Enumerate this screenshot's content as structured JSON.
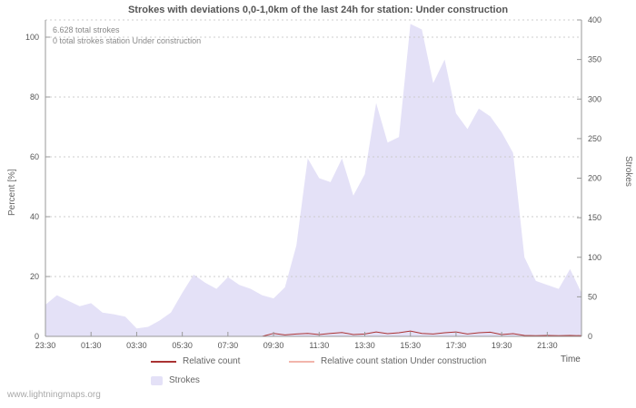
{
  "watermark": "www.lightningmaps.org",
  "chart_data": {
    "type": "area",
    "title": "Strokes with deviations 0,0-1,0km of the last 24h for station: Under construction",
    "annotations": {
      "total_strokes": "6.628 total strokes",
      "station_strokes": "0 total strokes station Under construction"
    },
    "x_axis_label": "Time",
    "x_tick_labels": [
      "23:30",
      "01:30",
      "03:30",
      "05:30",
      "07:30",
      "09:30",
      "11:30",
      "13:30",
      "15:30",
      "17:30",
      "19:30",
      "21:30"
    ],
    "left_axis": {
      "label": "Percent  [%]",
      "min": 0,
      "max": 100,
      "ticks": [
        0,
        20,
        40,
        60,
        80,
        100
      ]
    },
    "right_axis": {
      "label": "Strokes",
      "min": 0,
      "max": 400,
      "ticks": [
        0,
        50,
        100,
        150,
        200,
        250,
        300,
        350,
        400
      ]
    },
    "grid": true,
    "legend_position": "bottom",
    "series": [
      {
        "name": "Strokes",
        "type": "area",
        "axis": "right",
        "color": "#e4e1f7",
        "values": [
          40,
          52,
          45,
          38,
          42,
          30,
          28,
          25,
          10,
          12,
          20,
          30,
          55,
          78,
          68,
          60,
          75,
          65,
          60,
          52,
          48,
          62,
          115,
          225,
          200,
          195,
          225,
          178,
          205,
          295,
          245,
          252,
          395,
          388,
          320,
          350,
          282,
          262,
          288,
          278,
          258,
          232,
          100,
          70,
          65,
          60,
          85,
          55
        ]
      },
      {
        "name": "Relative count",
        "type": "line",
        "axis": "left",
        "color": "#aa3333",
        "values": [
          0,
          0,
          0,
          0,
          0,
          0,
          0,
          0,
          0,
          0,
          0,
          0,
          0,
          0,
          0,
          0,
          0,
          0,
          0,
          0,
          1,
          0.5,
          0.8,
          1,
          0.6,
          1,
          1.3,
          0.6,
          0.8,
          1.5,
          0.9,
          1.2,
          1.8,
          1,
          0.8,
          1.2,
          1.5,
          0.8,
          1.2,
          1.4,
          0.6,
          0.9,
          0.3,
          0.2,
          0.3,
          0.2,
          0.3,
          0.2
        ]
      },
      {
        "name": "Relative count station Under construction",
        "type": "line",
        "axis": "left",
        "color": "#f2b5ab",
        "values": [
          0,
          0,
          0,
          0,
          0,
          0,
          0,
          0,
          0,
          0,
          0,
          0,
          0,
          0,
          0,
          0,
          0,
          0,
          0,
          0,
          0,
          0,
          0,
          0,
          0,
          0,
          0,
          0,
          0,
          0,
          0,
          0,
          0,
          0,
          0,
          0,
          0,
          0,
          0,
          0,
          0,
          0,
          0,
          0,
          0,
          0,
          0,
          0
        ]
      }
    ],
    "legend": [
      {
        "label": "Relative count",
        "swatch": "line",
        "color": "#aa3333"
      },
      {
        "label": "Relative count station Under construction",
        "swatch": "line",
        "color": "#f2b5ab"
      },
      {
        "label": "Strokes",
        "swatch": "box",
        "color": "#e4e1f7"
      }
    ]
  }
}
